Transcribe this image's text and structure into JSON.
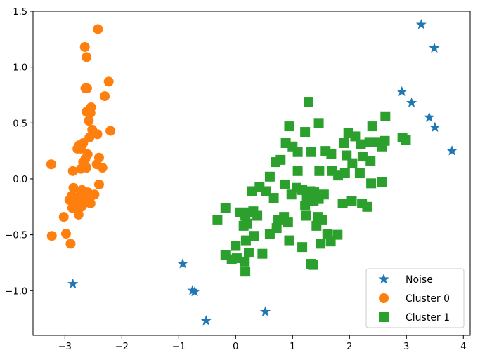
{
  "chart_data": {
    "type": "scatter",
    "title": "",
    "xlabel": "",
    "ylabel": "",
    "xlim": [
      -3.56,
      4.12
    ],
    "ylim": [
      -1.4,
      1.5
    ],
    "xticks": [
      -3,
      -2,
      -1,
      0,
      1,
      2,
      3,
      4
    ],
    "yticks": [
      -1.0,
      -0.5,
      0.0,
      0.5,
      1.0,
      1.5
    ],
    "xtick_labels": [
      "−3",
      "−2",
      "−1",
      "0",
      "1",
      "2",
      "3",
      "4"
    ],
    "ytick_labels": [
      "−1.0",
      "−0.5",
      "0.0",
      "0.5",
      "1.0",
      "1.5"
    ],
    "grid": false,
    "legend_position": "lower-right",
    "series": [
      {
        "name": "Noise",
        "marker": "star",
        "color": "#1f77b4",
        "points": [
          [
            3.26,
            1.38
          ],
          [
            3.49,
            1.17
          ],
          [
            2.92,
            0.78
          ],
          [
            3.09,
            0.68
          ],
          [
            3.4,
            0.55
          ],
          [
            3.5,
            0.46
          ],
          [
            3.8,
            0.25
          ],
          [
            -2.86,
            -0.94
          ],
          [
            -0.93,
            -0.76
          ],
          [
            -0.76,
            -1.0
          ],
          [
            -0.72,
            -1.01
          ],
          [
            0.52,
            -1.19
          ],
          [
            -0.52,
            -1.27
          ]
        ]
      },
      {
        "name": "Cluster 0",
        "marker": "circle",
        "color": "#ff7f0e",
        "points": [
          [
            -2.42,
            1.34
          ],
          [
            -2.65,
            1.18
          ],
          [
            -2.62,
            1.09
          ],
          [
            -2.23,
            0.87
          ],
          [
            -2.64,
            0.81
          ],
          [
            -2.61,
            0.81
          ],
          [
            -2.3,
            0.74
          ],
          [
            -2.54,
            0.64
          ],
          [
            -2.62,
            0.6
          ],
          [
            -2.55,
            0.59
          ],
          [
            -2.58,
            0.52
          ],
          [
            -2.52,
            0.44
          ],
          [
            -2.2,
            0.43
          ],
          [
            -2.43,
            0.4
          ],
          [
            -2.57,
            0.37
          ],
          [
            -2.68,
            0.32
          ],
          [
            -2.75,
            0.3
          ],
          [
            -2.78,
            0.27
          ],
          [
            -2.72,
            0.27
          ],
          [
            -2.6,
            0.22
          ],
          [
            -2.64,
            0.18
          ],
          [
            -2.4,
            0.19
          ],
          [
            -2.68,
            0.15
          ],
          [
            -2.44,
            0.13
          ],
          [
            -2.62,
            0.1
          ],
          [
            -2.72,
            0.09
          ],
          [
            -2.34,
            0.1
          ],
          [
            -3.24,
            0.13
          ],
          [
            -2.86,
            0.07
          ],
          [
            -2.4,
            -0.05
          ],
          [
            -2.85,
            -0.08
          ],
          [
            -2.7,
            -0.1
          ],
          [
            -2.6,
            -0.12
          ],
          [
            -2.88,
            -0.15
          ],
          [
            -2.74,
            -0.15
          ],
          [
            -2.48,
            -0.14
          ],
          [
            -2.56,
            -0.17
          ],
          [
            -2.82,
            -0.19
          ],
          [
            -2.63,
            -0.19
          ],
          [
            -2.92,
            -0.19
          ],
          [
            -2.79,
            -0.21
          ],
          [
            -2.67,
            -0.22
          ],
          [
            -2.55,
            -0.22
          ],
          [
            -2.71,
            -0.25
          ],
          [
            -2.87,
            -0.26
          ],
          [
            -2.76,
            -0.32
          ],
          [
            -3.02,
            -0.34
          ],
          [
            -3.23,
            -0.51
          ],
          [
            -2.98,
            -0.49
          ],
          [
            -2.9,
            -0.58
          ]
        ]
      },
      {
        "name": "Cluster 1",
        "marker": "square",
        "color": "#2ca02c",
        "points": [
          [
            1.28,
            0.69
          ],
          [
            2.63,
            0.56
          ],
          [
            1.46,
            0.5
          ],
          [
            0.94,
            0.47
          ],
          [
            2.4,
            0.47
          ],
          [
            1.22,
            0.42
          ],
          [
            1.98,
            0.41
          ],
          [
            2.1,
            0.38
          ],
          [
            2.93,
            0.37
          ],
          [
            2.99,
            0.35
          ],
          [
            2.62,
            0.34
          ],
          [
            2.5,
            0.33
          ],
          [
            2.35,
            0.33
          ],
          [
            1.9,
            0.32
          ],
          [
            2.2,
            0.31
          ],
          [
            2.57,
            0.29
          ],
          [
            0.88,
            0.32
          ],
          [
            1.0,
            0.29
          ],
          [
            1.09,
            0.24
          ],
          [
            1.33,
            0.24
          ],
          [
            1.58,
            0.25
          ],
          [
            1.68,
            0.22
          ],
          [
            1.95,
            0.21
          ],
          [
            2.23,
            0.2
          ],
          [
            0.79,
            0.17
          ],
          [
            0.7,
            0.15
          ],
          [
            2.37,
            0.16
          ],
          [
            2.05,
            0.14
          ],
          [
            1.47,
            0.07
          ],
          [
            1.7,
            0.07
          ],
          [
            1.8,
            0.03
          ],
          [
            1.92,
            0.05
          ],
          [
            2.18,
            0.05
          ],
          [
            1.09,
            0.07
          ],
          [
            0.6,
            0.02
          ],
          [
            2.38,
            -0.04
          ],
          [
            2.57,
            -0.03
          ],
          [
            0.86,
            -0.05
          ],
          [
            0.42,
            -0.07
          ],
          [
            1.07,
            -0.08
          ],
          [
            1.17,
            -0.1
          ],
          [
            1.31,
            -0.11
          ],
          [
            1.38,
            -0.12
          ],
          [
            1.55,
            -0.14
          ],
          [
            0.53,
            -0.11
          ],
          [
            0.29,
            -0.11
          ],
          [
            0.98,
            -0.14
          ],
          [
            1.25,
            -0.17
          ],
          [
            1.46,
            -0.18
          ],
          [
            0.67,
            -0.17
          ],
          [
            1.37,
            -0.2
          ],
          [
            1.88,
            -0.22
          ],
          [
            2.04,
            -0.2
          ],
          [
            2.22,
            -0.22
          ],
          [
            2.31,
            -0.25
          ],
          [
            1.22,
            -0.24
          ],
          [
            0.25,
            -0.3
          ],
          [
            -0.18,
            -0.26
          ],
          [
            0.31,
            -0.29
          ],
          [
            0.08,
            -0.3
          ],
          [
            0.38,
            -0.33
          ],
          [
            0.17,
            -0.33
          ],
          [
            0.85,
            -0.34
          ],
          [
            1.24,
            -0.33
          ],
          [
            1.44,
            -0.34
          ],
          [
            -0.32,
            -0.37
          ],
          [
            0.75,
            -0.37
          ],
          [
            0.92,
            -0.39
          ],
          [
            0.2,
            -0.4
          ],
          [
            0.14,
            -0.42
          ],
          [
            0.72,
            -0.44
          ],
          [
            1.52,
            -0.37
          ],
          [
            1.42,
            -0.42
          ],
          [
            0.6,
            -0.49
          ],
          [
            0.32,
            -0.51
          ],
          [
            1.61,
            -0.49
          ],
          [
            1.79,
            -0.5
          ],
          [
            0.94,
            -0.55
          ],
          [
            0.18,
            -0.55
          ],
          [
            1.67,
            -0.56
          ],
          [
            1.49,
            -0.58
          ],
          [
            1.17,
            -0.61
          ],
          [
            0.0,
            -0.6
          ],
          [
            0.23,
            -0.66
          ],
          [
            0.47,
            -0.67
          ],
          [
            -0.18,
            -0.68
          ],
          [
            0.02,
            -0.71
          ],
          [
            -0.07,
            -0.72
          ],
          [
            0.16,
            -0.74
          ],
          [
            1.32,
            -0.76
          ],
          [
            1.36,
            -0.77
          ],
          [
            0.17,
            -0.83
          ]
        ]
      }
    ]
  }
}
